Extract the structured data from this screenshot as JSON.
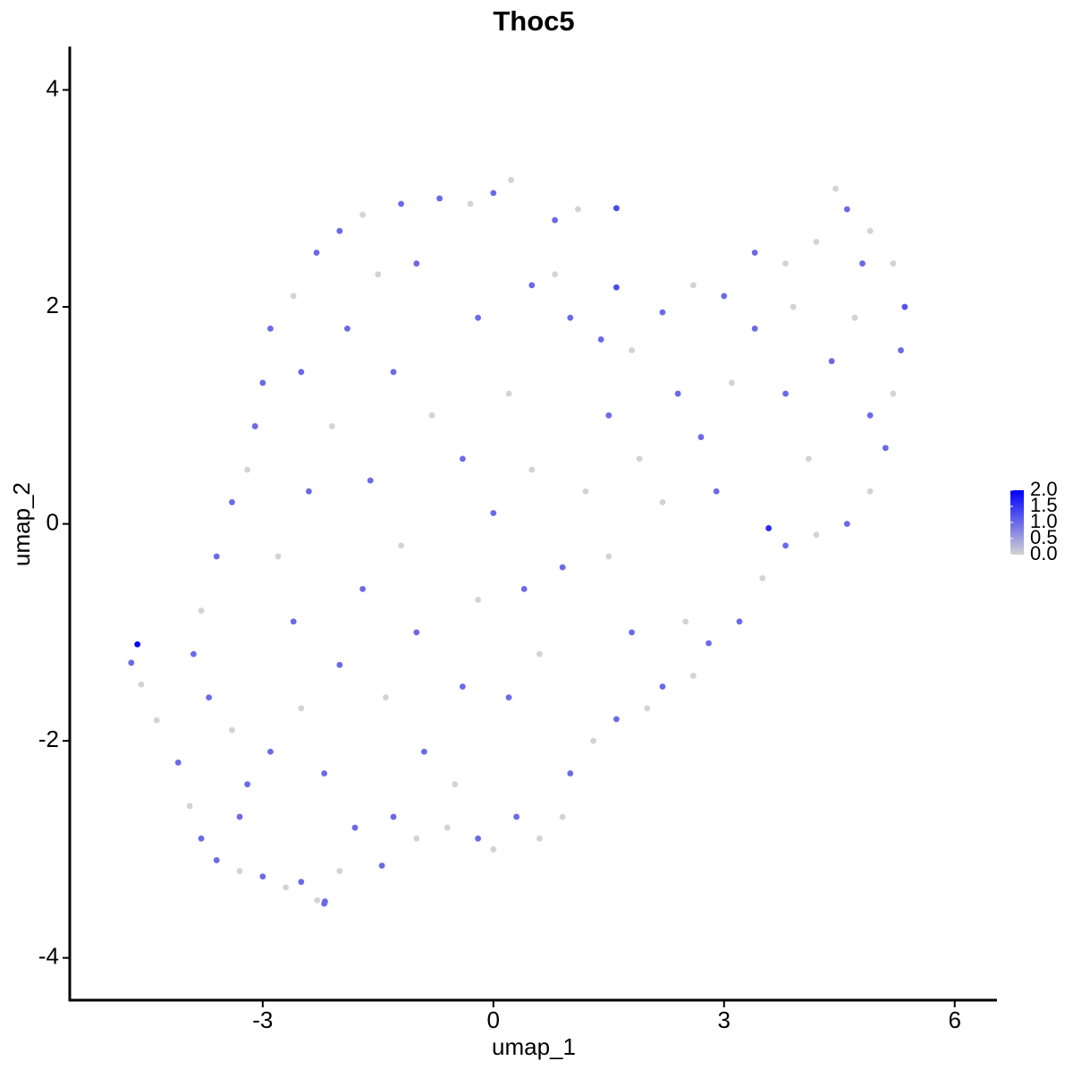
{
  "chart_data": {
    "type": "scatter",
    "title": "Thoc5",
    "xlabel": "umap_1",
    "ylabel": "umap_2",
    "xlim": [
      -5.51,
      6.55
    ],
    "ylim": [
      -4.39,
      4.4
    ],
    "xticks": [
      -3,
      0,
      3,
      6
    ],
    "yticks": [
      -4,
      -2,
      0,
      2,
      4
    ],
    "colors": [
      "#d3d3d3",
      "#0000ff"
    ],
    "clim": [
      0,
      2
    ],
    "cticks": [
      {
        "value": 0,
        "label": "0.0"
      },
      {
        "value": 0.5,
        "label": "0.5"
      },
      {
        "value": 1,
        "label": "1.0"
      },
      {
        "value": 1.5,
        "label": "1.5"
      },
      {
        "value": 2,
        "label": "2.0"
      }
    ],
    "x": [
      -4.63,
      -4.71,
      -4.58,
      -4.38,
      -4.1,
      -3.95,
      -3.8,
      -3.6,
      -3.3,
      -3.0,
      -2.7,
      -2.5,
      -2.2,
      -2.0,
      -1.45,
      -1.3,
      -1.0,
      -0.6,
      -0.2,
      0.0,
      0.3,
      0.6,
      0.9,
      1.0,
      1.3,
      1.6,
      2.0,
      2.2,
      2.6,
      2.8,
      3.2,
      3.5,
      3.8,
      4.2,
      4.6,
      4.9,
      5.1,
      5.2,
      5.3,
      5.35,
      5.2,
      4.9,
      4.6,
      4.45,
      4.2,
      3.8,
      3.4,
      3.0,
      2.6,
      2.2,
      1.8,
      1.6,
      1.4,
      1.0,
      0.8,
      1.6,
      1.1,
      0.8,
      0.23,
      0.0,
      -0.3,
      -0.7,
      -1.2,
      -1.7,
      -2.0,
      -2.3,
      -2.6,
      -2.9,
      -3.0,
      -3.1,
      -3.2,
      -3.4,
      -3.6,
      -3.8,
      -3.9,
      -3.7,
      -3.4,
      -3.2,
      -2.9,
      -2.5,
      -2.2,
      -2.0,
      -2.6,
      -2.8,
      -2.4,
      -2.1,
      -2.5,
      -1.9,
      -1.5,
      -1.0,
      -1.3,
      -0.8,
      -1.6,
      -1.2,
      -1.7,
      -1.0,
      -1.4,
      -0.9,
      -0.4,
      -0.2,
      0.0,
      -0.4,
      0.2,
      -0.2,
      0.5,
      0.5,
      0.4,
      0.2,
      0.6,
      0.9,
      1.2,
      1.5,
      1.9,
      2.4,
      2.2,
      2.7,
      3.1,
      3.4,
      3.8,
      4.1,
      4.4,
      4.7,
      4.9,
      3.58,
      2.5,
      1.8,
      1.5,
      2.9,
      3.9,
      4.8,
      -2.19,
      -2.29,
      -3.3,
      -1.8,
      -0.5
    ],
    "y": [
      -1.11,
      -1.28,
      -1.48,
      -1.81,
      -2.2,
      -2.6,
      -2.9,
      -3.1,
      -3.2,
      -3.25,
      -3.35,
      -3.3,
      -3.5,
      -3.2,
      -3.15,
      -2.7,
      -2.9,
      -2.8,
      -2.9,
      -3.0,
      -2.7,
      -2.9,
      -2.7,
      -2.3,
      -2.0,
      -1.8,
      -1.7,
      -1.5,
      -1.4,
      -1.1,
      -0.9,
      -0.5,
      -0.2,
      -0.1,
      0.0,
      0.3,
      0.7,
      1.2,
      1.6,
      2.0,
      2.4,
      2.7,
      2.9,
      3.09,
      2.6,
      2.4,
      2.5,
      2.1,
      2.2,
      1.95,
      1.6,
      2.18,
      1.7,
      1.9,
      2.3,
      2.91,
      2.9,
      2.8,
      3.17,
      3.05,
      2.95,
      3.0,
      2.95,
      2.85,
      2.7,
      2.5,
      2.1,
      1.8,
      1.3,
      0.9,
      0.5,
      0.2,
      -0.3,
      -0.8,
      -1.2,
      -1.6,
      -1.9,
      -2.4,
      -2.1,
      -1.7,
      -2.3,
      -1.3,
      -0.9,
      -0.3,
      0.3,
      0.9,
      1.4,
      1.8,
      2.3,
      2.4,
      1.4,
      1.0,
      0.4,
      -0.2,
      -0.6,
      -1.0,
      -1.6,
      -2.1,
      -1.5,
      -0.7,
      0.1,
      0.6,
      1.2,
      1.9,
      2.2,
      0.5,
      -0.6,
      -1.6,
      -1.2,
      -0.4,
      0.3,
      1.0,
      0.6,
      1.2,
      0.2,
      0.8,
      1.3,
      1.8,
      1.2,
      0.6,
      1.5,
      1.9,
      1.0,
      -0.04,
      -0.9,
      -1.0,
      -0.3,
      0.3,
      2.0,
      2.4,
      -3.48,
      -3.47,
      -2.7,
      -2.8,
      -2.4
    ],
    "values": [
      2.0,
      1.0,
      0,
      0,
      1.0,
      0,
      1.0,
      1.0,
      0,
      1.0,
      0,
      1.0,
      1.0,
      0,
      1.0,
      1.0,
      0,
      0,
      1.0,
      0,
      1.0,
      0,
      0,
      1.0,
      0,
      1.0,
      0,
      1.0,
      0,
      1.0,
      1.0,
      0,
      1.0,
      0,
      1.0,
      0,
      1.0,
      0,
      1.0,
      1.2,
      0,
      0,
      1.0,
      0,
      0,
      0,
      1.0,
      1.0,
      0,
      1.0,
      0,
      1.3,
      1.0,
      1.0,
      0,
      1.3,
      0,
      1.0,
      0,
      1.0,
      0,
      1.0,
      1.0,
      0,
      1.0,
      1.0,
      0,
      1.0,
      1.0,
      1.0,
      0,
      1.0,
      1.0,
      0,
      1.0,
      1.0,
      0,
      1.0,
      1.0,
      0,
      1.0,
      1.0,
      1.0,
      0,
      1.0,
      0,
      1.0,
      1.0,
      0,
      1.0,
      1.0,
      0,
      1.0,
      0,
      1.0,
      1.0,
      0,
      1.0,
      1.0,
      0,
      1.0,
      1.0,
      0,
      1.0,
      1.0,
      0,
      1.0,
      1.0,
      0,
      1.0,
      0,
      1.0,
      0,
      1.0,
      0,
      1.0,
      0,
      1.0,
      1.0,
      0,
      1.0,
      0,
      1.0,
      1.6,
      0,
      1.0,
      0,
      1.0,
      0,
      1.0,
      1.0,
      0,
      1.0,
      1.0,
      0
    ]
  }
}
